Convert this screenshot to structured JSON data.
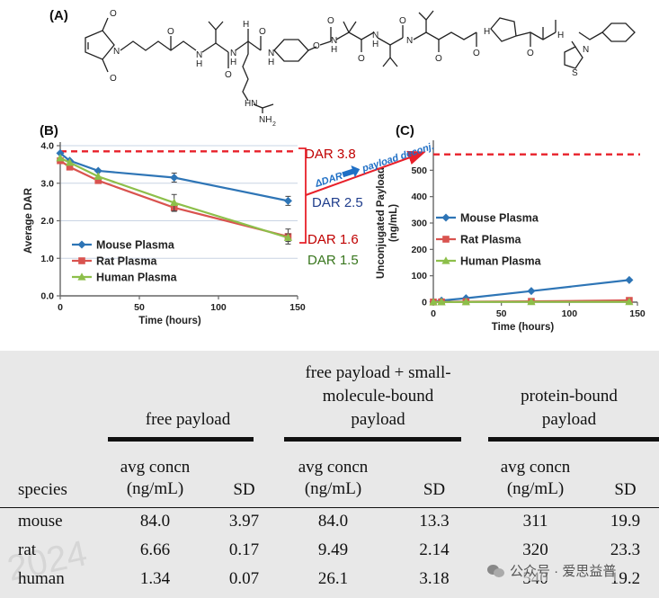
{
  "panel_labels": {
    "a": "(A)",
    "b": "(B)",
    "c": "(C)"
  },
  "structure": {
    "atoms": {
      "o1": "O",
      "o2": "O",
      "n1": "N",
      "nh1": "H",
      "nh2": "H",
      "n2": "N",
      "o3": "O",
      "o4": "O",
      "n3": "N",
      "nh3": "H",
      "hn": "HN",
      "o5": "O",
      "nh2g": "NH",
      "sub2": "2",
      "nh4": "H",
      "o6": "O",
      "o7": "O",
      "nh5": "H",
      "n4": "N",
      "o8": "O",
      "nh6": "H",
      "n5": "N",
      "o9": "O",
      "o10": "O",
      "o11": "O",
      "n6": "N",
      "o12": "O",
      "nh7": "H",
      "n7": "N",
      "s1": "S"
    }
  },
  "annotations": {
    "dar_38": "DAR 3.8",
    "dar_25": "DAR 2.5",
    "dar_16": "DAR 1.6",
    "dar_15": "DAR 1.5",
    "delta_dar": "ΔDAR",
    "payload_deconj": "payload deconj."
  },
  "colors": {
    "mouse": "#2E75B6",
    "rat": "#D9534F",
    "human": "#8DBF4A",
    "dashed": "#E8202A",
    "dar38": "#C00000",
    "dar25": "#1F3D8C",
    "dar16": "#C00000",
    "dar15": "#38761D",
    "arrow": "#1F6FC5"
  },
  "chart_data": [
    {
      "id": "B",
      "type": "line",
      "title": "",
      "xlabel": "Time (hours)",
      "ylabel": "Average DAR",
      "xlim": [
        0,
        150
      ],
      "ylim": [
        0,
        4
      ],
      "xticks": [
        0,
        50,
        100,
        150
      ],
      "xtick_labels": [
        "0",
        "50",
        "100",
        "150"
      ],
      "yticks": [
        0,
        1,
        2,
        3,
        4
      ],
      "ytick_labels": [
        "0.0",
        "1.0",
        "2.0",
        "3.0",
        "4.0"
      ],
      "grid": true,
      "legend": "bottom-left",
      "reference_line": {
        "y": 3.85,
        "style": "dashed"
      },
      "series": [
        {
          "name": "Mouse Plasma",
          "color": "mouse",
          "marker": "diamond",
          "x": [
            0,
            6,
            24,
            72,
            144
          ],
          "y": [
            3.8,
            3.6,
            3.33,
            3.15,
            2.53
          ],
          "err": [
            0.05,
            0.05,
            0.05,
            0.12,
            0.12
          ]
        },
        {
          "name": "Rat Plasma",
          "color": "rat",
          "marker": "square",
          "x": [
            0,
            6,
            24,
            72,
            144
          ],
          "y": [
            3.6,
            3.43,
            3.07,
            2.35,
            1.58
          ],
          "err": [
            0.05,
            0.05,
            0.05,
            0.1,
            0.2
          ]
        },
        {
          "name": "Human Plasma",
          "color": "human",
          "marker": "triangle",
          "x": [
            0,
            6,
            24,
            72,
            144
          ],
          "y": [
            3.67,
            3.55,
            3.18,
            2.48,
            1.55
          ],
          "err": [
            0.05,
            0.05,
            0.05,
            0.22,
            0.1
          ]
        }
      ]
    },
    {
      "id": "C",
      "type": "line",
      "title": "",
      "xlabel": "Time (hours)",
      "ylabel": "Unconjugated Payload (ng/mL)",
      "xlim": [
        0,
        150
      ],
      "ylim": [
        0,
        600
      ],
      "xticks": [
        0,
        50,
        100,
        150
      ],
      "xtick_labels": [
        "0",
        "50",
        "100",
        "150"
      ],
      "yticks": [
        0,
        100,
        200,
        300,
        400,
        500
      ],
      "ytick_labels": [
        "0",
        "100",
        "200",
        "300",
        "400",
        "500"
      ],
      "grid": false,
      "legend": "center-left",
      "reference_line": {
        "y": 560,
        "style": "dashed"
      },
      "series": [
        {
          "name": "Mouse Plasma",
          "color": "mouse",
          "marker": "diamond",
          "x": [
            0,
            6,
            24,
            72,
            144
          ],
          "y": [
            2,
            6,
            15,
            42,
            84
          ]
        },
        {
          "name": "Rat Plasma",
          "color": "rat",
          "marker": "square",
          "x": [
            0,
            6,
            24,
            72,
            144
          ],
          "y": [
            0.5,
            1,
            2,
            3,
            6.7
          ]
        },
        {
          "name": "Human Plasma",
          "color": "human",
          "marker": "triangle",
          "x": [
            0,
            6,
            24,
            72,
            144
          ],
          "y": [
            0.2,
            0.5,
            0.8,
            1,
            1.3
          ]
        }
      ]
    },
    {
      "id": "table",
      "type": "table",
      "group_headers": [
        "free payload",
        "free payload + small-molecule-bound payload",
        "protein-bound payload"
      ],
      "group_header_lines": [
        [
          "free payload"
        ],
        [
          "free payload + small-",
          "molecule-bound",
          "payload"
        ],
        [
          "protein-bound",
          "payload"
        ]
      ],
      "column_headers": {
        "species": "species",
        "avg_lines": [
          "avg concn",
          "(ng/mL)"
        ],
        "sd": "SD"
      },
      "rows": [
        {
          "species": "mouse",
          "values": [
            "84.0",
            "3.97",
            "84.0",
            "13.3",
            "311",
            "19.9"
          ]
        },
        {
          "species": "rat",
          "values": [
            "6.66",
            "0.17",
            "9.49",
            "2.14",
            "320",
            "23.3"
          ]
        },
        {
          "species": "human",
          "values": [
            "1.34",
            "0.07",
            "26.1",
            "3.18",
            "540",
            "19.2"
          ]
        }
      ]
    }
  ],
  "watermark": {
    "text": "公众号 · 爱思益普",
    "year_text": "2024"
  }
}
